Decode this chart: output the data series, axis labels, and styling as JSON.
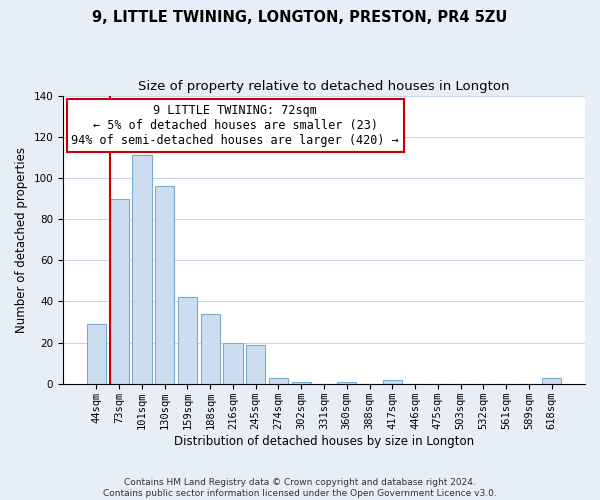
{
  "title": "9, LITTLE TWINING, LONGTON, PRESTON, PR4 5ZU",
  "subtitle": "Size of property relative to detached houses in Longton",
  "xlabel": "Distribution of detached houses by size in Longton",
  "ylabel": "Number of detached properties",
  "bar_labels": [
    "44sqm",
    "73sqm",
    "101sqm",
    "130sqm",
    "159sqm",
    "188sqm",
    "216sqm",
    "245sqm",
    "274sqm",
    "302sqm",
    "331sqm",
    "360sqm",
    "388sqm",
    "417sqm",
    "446sqm",
    "475sqm",
    "503sqm",
    "532sqm",
    "561sqm",
    "589sqm",
    "618sqm"
  ],
  "bar_values": [
    29,
    90,
    111,
    96,
    42,
    34,
    20,
    19,
    3,
    1,
    0,
    1,
    0,
    2,
    0,
    0,
    0,
    0,
    0,
    0,
    3
  ],
  "bar_color": "#ccddf0",
  "bar_edge_color": "#7aaad0",
  "vline_color": "#cc0000",
  "ylim": [
    0,
    140
  ],
  "yticks": [
    0,
    20,
    40,
    60,
    80,
    100,
    120,
    140
  ],
  "annotation_title": "9 LITTLE TWINING: 72sqm",
  "annotation_line1": "← 5% of detached houses are smaller (23)",
  "annotation_line2": "94% of semi-detached houses are larger (420) →",
  "annotation_box_color": "white",
  "annotation_box_edge": "#cc0000",
  "footer_line1": "Contains HM Land Registry data © Crown copyright and database right 2024.",
  "footer_line2": "Contains public sector information licensed under the Open Government Licence v3.0.",
  "background_color": "#e8eef8",
  "plot_bg_color": "white",
  "grid_color": "#c8d4e8",
  "title_fontsize": 10.5,
  "subtitle_fontsize": 9.5,
  "xlabel_fontsize": 8.5,
  "ylabel_fontsize": 8.5,
  "tick_fontsize": 7.5,
  "annotation_fontsize": 8.5,
  "footer_fontsize": 6.5
}
